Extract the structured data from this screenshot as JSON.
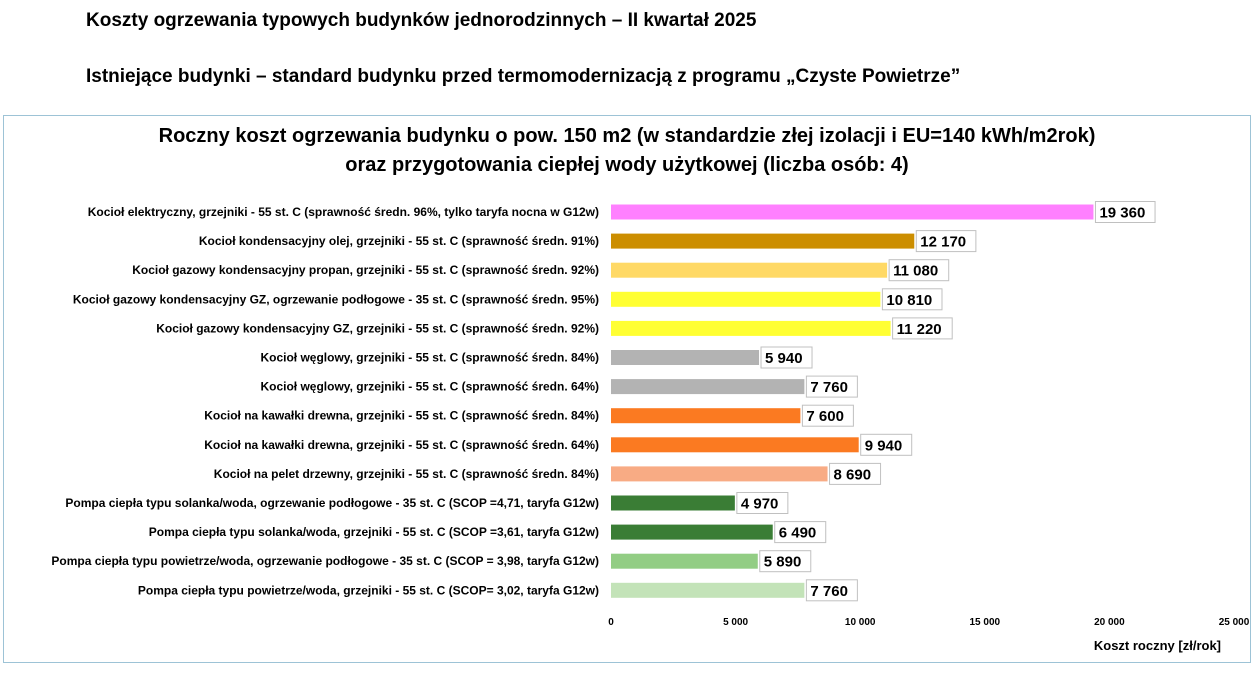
{
  "header": {
    "title": "Koszty ogrzewania typowych budynków jednorodzinnych – II kwartał 2025",
    "subtitle": "Istniejące budynki – standard budynku przed termomodernizacją z programu „Czyste Powietrze”"
  },
  "chart_data": {
    "type": "bar",
    "orientation": "horizontal",
    "title_line1": "Roczny koszt ogrzewania budynku o pow. 150 m2 (w standardzie złej izolacji i EU=140 kWh/m2rok)",
    "title_line2": "oraz przygotowania ciepłej wody użytkowej (liczba osób: 4)",
    "xlabel": "Koszt roczny [zł/rok]",
    "ylabel": "",
    "xlim": [
      0,
      25000
    ],
    "xticks": [
      0,
      5000,
      10000,
      15000,
      20000,
      25000
    ],
    "xtick_labels": [
      "0",
      "5 000",
      "10 000",
      "15 000",
      "20 000",
      "25 000"
    ],
    "grid": false,
    "legend": "none",
    "categories": [
      "Kocioł  elektryczny,  grzejniki - 55 st. C  (sprawność średn. 96%, tylko taryfa nocna w G12w)",
      "Kocioł  kondensacyjny olej,  grzejniki - 55 st. C (sprawność średn. 91%)",
      "Kocioł gazowy kondensacyjny propan, grzejniki - 55 st. C (sprawność średn. 92%)",
      "Kocioł gazowy kondensacyjny GZ, ogrzewanie podłogowe - 35 st. C (sprawność średn. 95%)",
      "Kocioł gazowy kondensacyjny GZ, grzejniki - 55 st. C (sprawność średn. 92%)",
      "Kocioł węglowy,  grzejniki - 55 st. C (sprawność średn. 84%)",
      "Kocioł węglowy,  grzejniki - 55 st. C (sprawność średn. 64%)",
      "Kocioł na kawałki drewna, grzejniki - 55 st. C (sprawność średn. 84%)",
      "Kocioł na kawałki drewna, grzejniki - 55 st. C (sprawność średn. 64%)",
      "Kocioł na pelet drzewny, grzejniki - 55 st. C (sprawność średn. 84%)",
      "Pompa ciepła typu solanka/woda, ogrzewanie podłogowe - 35 st. C (SCOP =4,71, taryfa G12w)",
      "Pompa ciepła typu solanka/woda, grzejniki - 55 st. C (SCOP =3,61, taryfa G12w)",
      "Pompa ciepła typu powietrze/woda, ogrzewanie podłogowe - 35 st. C (SCOP = 3,98, taryfa G12w)",
      "Pompa ciepła typu powietrze/woda, grzejniki - 55 st. C (SCOP= 3,02, taryfa G12w)"
    ],
    "values": [
      19360,
      12170,
      11080,
      10810,
      11220,
      5940,
      7760,
      7600,
      9940,
      8690,
      4970,
      6490,
      5890,
      7760
    ],
    "value_labels": [
      "19 360",
      "12 170",
      "11 080",
      "10 810",
      "11 220",
      "5 940",
      "7 760",
      "7 600",
      "9 940",
      "8 690",
      "4 970",
      "6 490",
      "5 890",
      "7 760"
    ],
    "colors": [
      "#ff80ff",
      "#cc8e00",
      "#ffd966",
      "#ffff33",
      "#ffff33",
      "#b3b3b3",
      "#b3b3b3",
      "#fb7a21",
      "#fb7a21",
      "#f8ab84",
      "#3a7d35",
      "#3a7d35",
      "#92cd84",
      "#c3e3b8"
    ]
  }
}
